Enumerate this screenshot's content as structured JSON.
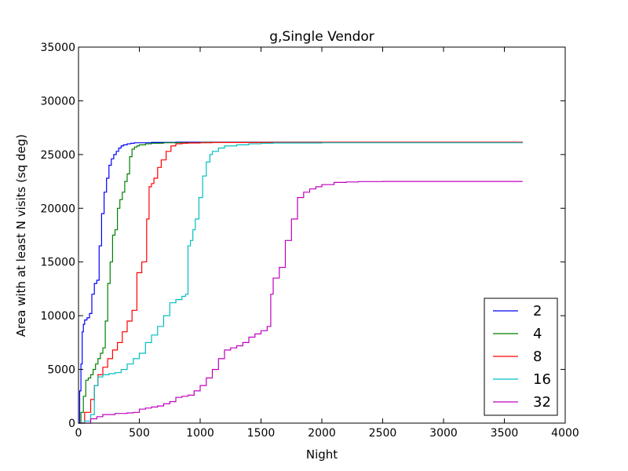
{
  "chart_data": {
    "type": "line",
    "title": "g,Single Vendor",
    "xlabel": "Night",
    "ylabel": "Area with at least N visits (sq deg)",
    "xlim": [
      0,
      4000
    ],
    "ylim": [
      0,
      35000
    ],
    "xticks": [
      "0",
      "500",
      "1000",
      "1500",
      "2000",
      "2500",
      "3000",
      "3500",
      "4000"
    ],
    "yticks": [
      "0",
      "5000",
      "10000",
      "15000",
      "20000",
      "25000",
      "30000",
      "35000"
    ],
    "grid": false,
    "legend_position": "lower-right",
    "series": [
      {
        "name": "2",
        "color": "#0000ff",
        "x": [
          0,
          10,
          20,
          30,
          40,
          50,
          70,
          90,
          110,
          130,
          150,
          170,
          190,
          210,
          230,
          250,
          270,
          290,
          310,
          330,
          350,
          370,
          400,
          430,
          460,
          500,
          600,
          800,
          1000,
          2000,
          3000,
          3650
        ],
        "y": [
          0,
          3000,
          5500,
          8500,
          9200,
          9600,
          9800,
          10200,
          12000,
          13000,
          13300,
          16500,
          19500,
          21500,
          22800,
          24000,
          24600,
          25000,
          25300,
          25600,
          25800,
          25900,
          26000,
          26050,
          26100,
          26100,
          26130,
          26150,
          26150,
          26150,
          26150,
          26150
        ]
      },
      {
        "name": "4",
        "color": "#008000",
        "x": [
          0,
          20,
          40,
          60,
          80,
          100,
          120,
          140,
          160,
          180,
          200,
          220,
          240,
          260,
          280,
          300,
          320,
          340,
          360,
          380,
          400,
          420,
          440,
          460,
          480,
          500,
          550,
          600,
          700,
          1000,
          2000,
          3650
        ],
        "y": [
          0,
          1000,
          2500,
          4000,
          4200,
          4500,
          5000,
          5500,
          6000,
          6500,
          7000,
          9500,
          13000,
          15000,
          17500,
          18000,
          20000,
          20800,
          21500,
          22500,
          23200,
          24800,
          25500,
          25700,
          25800,
          25900,
          26000,
          26050,
          26100,
          26130,
          26150,
          26150
        ]
      },
      {
        "name": "8",
        "color": "#ff0000",
        "x": [
          0,
          50,
          100,
          130,
          160,
          200,
          240,
          280,
          320,
          360,
          400,
          440,
          480,
          520,
          560,
          580,
          600,
          620,
          650,
          680,
          720,
          760,
          800,
          850,
          900,
          1000,
          1100,
          1500,
          2000,
          3650
        ],
        "y": [
          0,
          1000,
          2200,
          3500,
          4500,
          5200,
          6000,
          6800,
          7500,
          8500,
          9500,
          10500,
          14000,
          15000,
          19000,
          22000,
          22300,
          22800,
          23800,
          24500,
          25300,
          25800,
          26000,
          26050,
          26080,
          26100,
          26120,
          26130,
          26150,
          26150
        ]
      },
      {
        "name": "16",
        "color": "#00bfbf",
        "x": [
          0,
          50,
          100,
          130,
          160,
          200,
          250,
          300,
          350,
          400,
          450,
          500,
          550,
          600,
          650,
          700,
          750,
          800,
          850,
          880,
          900,
          920,
          940,
          960,
          990,
          1020,
          1050,
          1080,
          1100,
          1150,
          1200,
          1300,
          1400,
          1500,
          1600,
          2000,
          3650
        ],
        "y": [
          0,
          200,
          800,
          3500,
          4300,
          4500,
          4600,
          4700,
          5000,
          5500,
          6000,
          6500,
          7500,
          8200,
          9000,
          10000,
          11200,
          11500,
          11800,
          12000,
          16500,
          17000,
          18000,
          19000,
          21000,
          23000,
          24300,
          25000,
          25300,
          25600,
          25800,
          25900,
          26000,
          26050,
          26080,
          26100,
          26100
        ]
      },
      {
        "name": "32",
        "color": "#bf00bf",
        "x": [
          0,
          100,
          150,
          200,
          300,
          400,
          450,
          500,
          550,
          600,
          650,
          700,
          750,
          800,
          850,
          900,
          950,
          1000,
          1050,
          1100,
          1150,
          1200,
          1250,
          1300,
          1350,
          1400,
          1450,
          1500,
          1550,
          1580,
          1600,
          1650,
          1700,
          1750,
          1800,
          1850,
          1900,
          1950,
          2000,
          2100,
          2200,
          2300,
          2500,
          3000,
          3650
        ],
        "y": [
          0,
          400,
          600,
          800,
          900,
          950,
          1000,
          1300,
          1400,
          1500,
          1600,
          1800,
          2000,
          2400,
          2500,
          2600,
          3000,
          3500,
          4200,
          5000,
          6000,
          6800,
          7000,
          7200,
          7500,
          8000,
          8300,
          8600,
          9000,
          12000,
          13500,
          14500,
          17000,
          19000,
          21000,
          21500,
          21800,
          22000,
          22200,
          22400,
          22450,
          22480,
          22500,
          22500,
          22500
        ]
      }
    ]
  }
}
